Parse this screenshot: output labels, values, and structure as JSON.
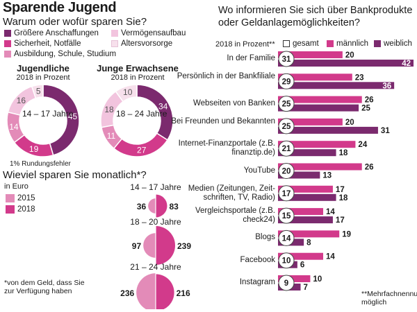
{
  "title": "Sparende Jugend",
  "left": {
    "question": "Warum oder wofür sparen Sie?",
    "legend": [
      {
        "label": "Größere Anschaffungen",
        "color": "#7b2a6e"
      },
      {
        "label": "Vermögensaufbau",
        "color": "#f2c4de"
      },
      {
        "label": "Sicherheit, Notfälle",
        "color": "#d23a8b"
      },
      {
        "label": "Altersvorsorge",
        "color": "#f7e0ec"
      },
      {
        "label": "Ausbildung, Schule, Studium",
        "color": "#e38bb8"
      }
    ],
    "footnote_rounding": "1% Rundungsfehler"
  },
  "monthly": {
    "question": "Wieviel sparen Sie monatlich*?",
    "unit": "in Euro",
    "legend": [
      {
        "label": "2015",
        "color": "#e38bb8"
      },
      {
        "label": "2018",
        "color": "#d23a8b"
      }
    ],
    "footnote": "*von dem Geld, dass Sie zur Verfügung haben"
  },
  "right": {
    "question": "Wo informieren Sie sich über Bankprodukte oder Geldanlagemöglichkeiten?",
    "subtitle": "2018 in Prozent**",
    "legend": [
      {
        "label": "gesamt",
        "color": "#ffffff"
      },
      {
        "label": "männlich",
        "color": "#d23a8b"
      },
      {
        "label": "weiblich",
        "color": "#7b2a6e"
      }
    ],
    "footnote": "**Mehrfachnennung möglich"
  },
  "chart_data": [
    {
      "type": "pie",
      "title": "Jugendliche",
      "subtitle": "2018 in Prozent",
      "center_label": "14 – 17 Jahre",
      "slices": [
        {
          "name": "Größere Anschaffungen",
          "value": 45
        },
        {
          "name": "Sicherheit, Notfälle",
          "value": 19
        },
        {
          "name": "Ausbildung, Schule, Studium",
          "value": 14
        },
        {
          "name": "Vermögensaufbau",
          "value": 16
        },
        {
          "name": "Altersvorsorge",
          "value": 5
        }
      ]
    },
    {
      "type": "pie",
      "title": "Junge Erwachsene",
      "subtitle": "2018 in Prozent",
      "center_label": "18 – 24 Jahre",
      "slices": [
        {
          "name": "Größere Anschaffungen",
          "value": 34
        },
        {
          "name": "Sicherheit, Notfälle",
          "value": 27
        },
        {
          "name": "Ausbildung, Schule, Studium",
          "value": 11
        },
        {
          "name": "Vermögensaufbau",
          "value": 18
        },
        {
          "name": "Altersvorsorge",
          "value": 10
        }
      ]
    },
    {
      "type": "bar",
      "title": "Wieviel sparen Sie monatlich*?",
      "ylabel": "in Euro",
      "categories": [
        "14 – 17 Jahre",
        "18 – 20 Jahre",
        "21 – 24 Jahre"
      ],
      "series": [
        {
          "name": "2015",
          "values": [
            36,
            97,
            236
          ]
        },
        {
          "name": "2018",
          "values": [
            83,
            239,
            216
          ]
        }
      ]
    },
    {
      "type": "bar",
      "title": "Wo informieren Sie sich über Bankprodukte oder Geldanlagemöglichkeiten?",
      "ylabel": "2018 in Prozent**",
      "categories": [
        "In der Familie",
        "Persönlich in der Bankfiliale",
        "Webseiten von Banken",
        "Bei Freunden und Bekannten",
        "Internet-Finanzportale (z.B. finanztip.de)",
        "YouTube",
        "Medien (Zeitungen, Zeit-schriften, TV, Radio)",
        "Vergleichsportale (z.B. check24)",
        "Blogs",
        "Facebook",
        "Instagram"
      ],
      "series": [
        {
          "name": "gesamt",
          "values": [
            31,
            29,
            25,
            25,
            21,
            20,
            17,
            15,
            14,
            10,
            9
          ]
        },
        {
          "name": "männlich",
          "values": [
            20,
            23,
            26,
            20,
            24,
            26,
            17,
            14,
            19,
            14,
            10
          ]
        },
        {
          "name": "weiblich",
          "values": [
            42,
            36,
            25,
            31,
            18,
            13,
            18,
            17,
            8,
            6,
            7
          ]
        }
      ],
      "xlim": [
        0,
        42
      ]
    }
  ]
}
